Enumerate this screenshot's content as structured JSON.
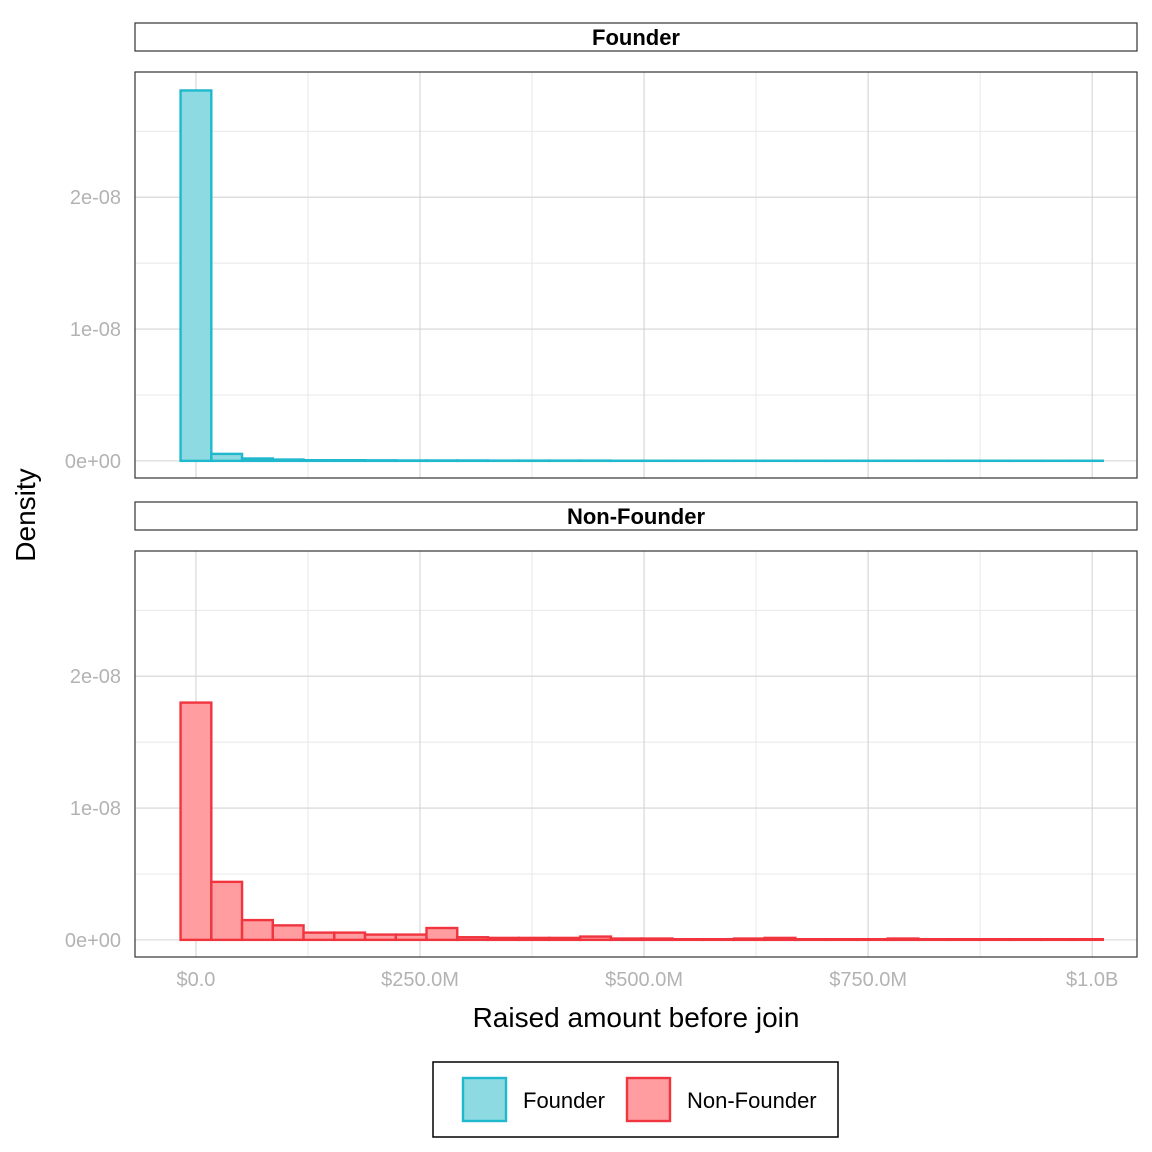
{
  "chart_data": {
    "type": "bar",
    "subtype": "faceted-histogram",
    "xlabel": "Raised amount before join",
    "ylabel": "Density",
    "x_ticks": [
      {
        "value": 0,
        "label": "$0.0"
      },
      {
        "value": 250000000,
        "label": "$250.0M"
      },
      {
        "value": 500000000,
        "label": "$500.0M"
      },
      {
        "value": 750000000,
        "label": "$750.0M"
      },
      {
        "value": 1000000000,
        "label": "$1.0B"
      }
    ],
    "y_ticks": [
      {
        "value": 0,
        "label": "0e+00"
      },
      {
        "value": 1e-08,
        "label": "1e-08"
      },
      {
        "value": 2e-08,
        "label": "2e-08"
      }
    ],
    "xlim": [
      -68000000,
      1050000000
    ],
    "ylim": [
      -1.3e-09,
      2.95e-08
    ],
    "grid": true,
    "bin_width": 34300000,
    "bin_start": -17150000,
    "legend": {
      "position": "bottom",
      "items": [
        {
          "label": "Founder",
          "fill": "#8ddae3",
          "stroke": "#1fb8cc"
        },
        {
          "label": "Non-Founder",
          "fill": "#ff9da0",
          "stroke": "#f0353f"
        }
      ]
    },
    "facets": [
      {
        "strip": "Founder",
        "fill": "#8ddae3",
        "stroke": "#1fb8cc",
        "values": [
          2.81e-08,
          5.3e-10,
          1.8e-10,
          1e-10,
          5e-11,
          5e-11,
          4e-11,
          3e-11,
          3e-11,
          3e-11,
          2e-11,
          2e-11,
          2e-11,
          2e-11,
          1e-11,
          1e-11,
          1e-11,
          1e-11,
          1e-11,
          1e-11,
          1e-11,
          1e-11,
          1e-11,
          1e-11,
          1e-11,
          1e-11,
          1e-11,
          1e-11,
          1e-11,
          1e-11
        ]
      },
      {
        "strip": "Non-Founder",
        "fill": "#ff9da0",
        "stroke": "#f0353f",
        "values": [
          1.8e-08,
          4.4e-09,
          1.5e-09,
          1.1e-09,
          5.5e-10,
          5.5e-10,
          4e-10,
          4e-10,
          9e-10,
          2e-10,
          1.5e-10,
          1.5e-10,
          1.5e-10,
          2.5e-10,
          1e-10,
          1e-10,
          5e-11,
          5e-11,
          1e-10,
          1.5e-10,
          5e-11,
          5e-11,
          5e-11,
          1e-10,
          5e-11,
          5e-11,
          5e-11,
          5e-11,
          5e-11,
          5e-11
        ]
      }
    ]
  }
}
